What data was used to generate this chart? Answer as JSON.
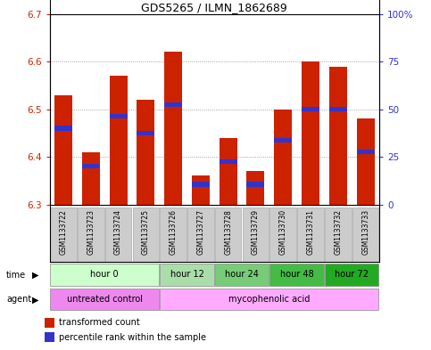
{
  "title": "GDS5265 / ILMN_1862689",
  "samples": [
    "GSM1133722",
    "GSM1133723",
    "GSM1133724",
    "GSM1133725",
    "GSM1133726",
    "GSM1133727",
    "GSM1133728",
    "GSM1133729",
    "GSM1133730",
    "GSM1133731",
    "GSM1133732",
    "GSM1133733"
  ],
  "bar_tops": [
    6.53,
    6.41,
    6.57,
    6.52,
    6.62,
    6.36,
    6.44,
    6.37,
    6.5,
    6.6,
    6.59,
    6.48
  ],
  "blue_marker_pos": [
    6.46,
    6.38,
    6.485,
    6.45,
    6.51,
    6.342,
    6.39,
    6.342,
    6.435,
    6.5,
    6.5,
    6.41
  ],
  "bar_bottom": 6.3,
  "ylim": [
    6.3,
    6.7
  ],
  "yticks_left": [
    6.3,
    6.4,
    6.5,
    6.6,
    6.7
  ],
  "yticks_right_vals": [
    0,
    25,
    50,
    75,
    100
  ],
  "bar_color": "#cc2200",
  "blue_color": "#3333cc",
  "time_groups": [
    {
      "label": "hour 0",
      "start": 0,
      "end": 3,
      "color": "#ccffcc"
    },
    {
      "label": "hour 12",
      "start": 4,
      "end": 5,
      "color": "#aaddaa"
    },
    {
      "label": "hour 24",
      "start": 6,
      "end": 7,
      "color": "#77cc77"
    },
    {
      "label": "hour 48",
      "start": 8,
      "end": 9,
      "color": "#44bb44"
    },
    {
      "label": "hour 72",
      "start": 10,
      "end": 11,
      "color": "#22aa22"
    }
  ],
  "agent_groups": [
    {
      "label": "untreated control",
      "start": 0,
      "end": 3,
      "color": "#ee88ee"
    },
    {
      "label": "mycophenolic acid",
      "start": 4,
      "end": 11,
      "color": "#ffaaff"
    }
  ],
  "legend_items": [
    {
      "color": "#cc2200",
      "label": "transformed count"
    },
    {
      "color": "#3333cc",
      "label": "percentile rank within the sample"
    }
  ],
  "grid_color": "#888888",
  "sample_bg": "#cccccc",
  "plot_border_color": "#000000"
}
